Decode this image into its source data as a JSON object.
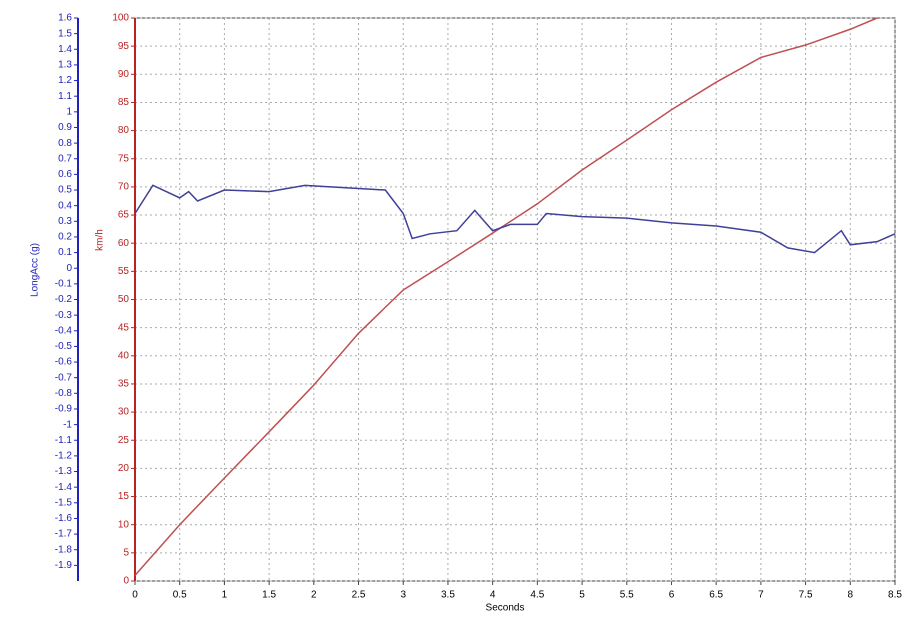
{
  "chart_data": {
    "type": "line",
    "xlabel": "Seconds",
    "ylabel": "LongAcc (g)",
    "y2label": "km/h",
    "xlim": [
      0,
      8.5
    ],
    "xticks": [
      0,
      0.5,
      1,
      1.5,
      2,
      2.5,
      3,
      3.5,
      4,
      4.5,
      5,
      5.5,
      6,
      6.5,
      7,
      7.5,
      8,
      8.5
    ],
    "ylim": [
      -2,
      1.6
    ],
    "yticks": [
      1.6,
      1.5,
      1.4,
      1.3,
      1.2,
      1.1,
      1,
      0.9,
      0.8,
      0.7,
      0.6,
      0.5,
      0.4,
      0.3,
      0.2,
      0.1,
      0,
      -0.1,
      -0.2,
      -0.3,
      -0.4,
      -0.5,
      -0.6,
      -0.7,
      -0.8,
      -0.9,
      -1,
      -1.1,
      -1.2,
      -1.3,
      -1.4,
      -1.5,
      -1.6,
      -1.7,
      -1.8,
      -1.9
    ],
    "y2lim": [
      0,
      100
    ],
    "y2ticks": [
      0,
      5,
      10,
      15,
      20,
      25,
      30,
      35,
      40,
      45,
      50,
      55,
      60,
      65,
      70,
      75,
      80,
      85,
      90,
      95,
      100
    ],
    "grid": true,
    "y_color": "#2222bb",
    "y2_color": "#bb2222",
    "series": [
      {
        "color": "#c05050",
        "axis": "y2",
        "x": [
          0,
          0.5,
          1,
          1.5,
          2,
          2.5,
          3,
          3.5,
          4,
          4.5,
          5,
          5.5,
          6,
          6.5,
          7,
          7.5,
          8,
          8.3
        ],
        "values": [
          1,
          10,
          18.3,
          26.5,
          34.8,
          44,
          51.7,
          56.7,
          61.8,
          67,
          73,
          78.3,
          83.7,
          88.6,
          93,
          95.2,
          98,
          100
        ]
      },
      {
        "color": "#40409a",
        "axis": "y",
        "x": [
          0,
          0.2,
          0.5,
          0.6,
          0.7,
          1,
          1.5,
          1.9,
          2.5,
          2.8,
          3,
          3.1,
          3.3,
          3.6,
          3.8,
          4,
          4.2,
          4.5,
          4.6,
          5,
          5.5,
          6,
          6.5,
          7,
          7.3,
          7.6,
          7.9,
          8,
          8.3,
          8.5
        ],
        "values": [
          0.35,
          0.53,
          0.45,
          0.49,
          0.43,
          0.5,
          0.49,
          0.53,
          0.51,
          0.5,
          0.35,
          0.19,
          0.22,
          0.24,
          0.37,
          0.24,
          0.28,
          0.28,
          0.35,
          0.33,
          0.32,
          0.29,
          0.27,
          0.23,
          0.13,
          0.1,
          0.24,
          0.15,
          0.17,
          0.22
        ]
      }
    ]
  }
}
